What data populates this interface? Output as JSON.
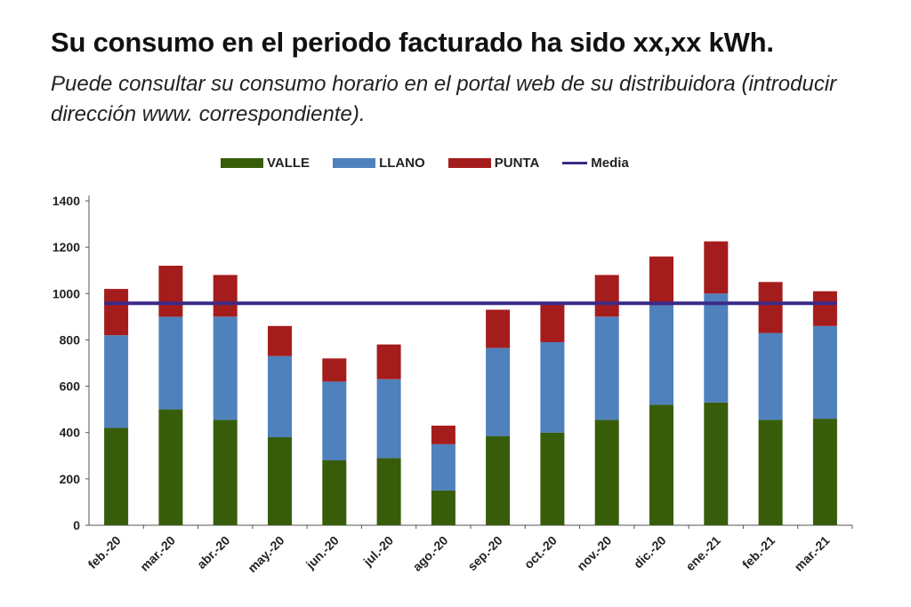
{
  "header": {
    "title": "Su consumo en el periodo facturado ha sido xx,xx kWh.",
    "subtitle": "Puede consultar su consumo horario en el portal web de su distribuidora  (introducir dirección www. correspondiente)."
  },
  "colors": {
    "valle": "#385d0a",
    "llano": "#4f81bd",
    "punta": "#a51c1c",
    "media": "#3b2a86",
    "axis": "#555555"
  },
  "chart_data": {
    "type": "bar",
    "stacked": true,
    "title": "",
    "xlabel": "",
    "ylabel": "",
    "ylim": [
      0,
      1400
    ],
    "yticks": [
      0,
      200,
      400,
      600,
      800,
      1000,
      1200,
      1400
    ],
    "categories": [
      "feb.-20",
      "mar.-20",
      "abr.-20",
      "may.-20",
      "jun.-20",
      "jul.-20",
      "ago.-20",
      "sep.-20",
      "oct.-20",
      "nov.-20",
      "dic.-20",
      "ene.-21",
      "feb.-21",
      "mar.-21"
    ],
    "series": [
      {
        "name": "VALLE",
        "values": [
          420,
          500,
          455,
          380,
          280,
          290,
          150,
          385,
          400,
          455,
          520,
          530,
          455,
          460
        ]
      },
      {
        "name": "LLANO",
        "values": [
          400,
          400,
          445,
          350,
          340,
          340,
          200,
          380,
          390,
          445,
          430,
          470,
          375,
          400
        ]
      },
      {
        "name": "PUNTA",
        "values": [
          200,
          220,
          180,
          130,
          100,
          150,
          80,
          165,
          170,
          180,
          210,
          225,
          220,
          150
        ]
      }
    ],
    "line_series": {
      "name": "Media",
      "value": 958
    },
    "legend": [
      "VALLE",
      "LLANO",
      "PUNTA",
      "Media"
    ],
    "legend_position": "top",
    "grid": false
  }
}
